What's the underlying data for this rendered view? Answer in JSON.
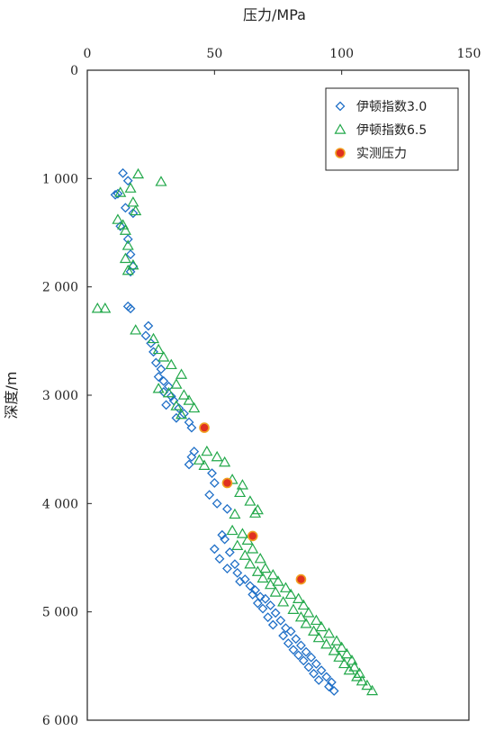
{
  "chart_data": {
    "type": "scatter",
    "title": "",
    "xlabel": "压力/MPa",
    "ylabel": "深度/m",
    "xlim": [
      0,
      150
    ],
    "ylim": [
      0,
      6000
    ],
    "y_inverted": true,
    "x_axis_position": "top",
    "x_ticks": [
      0,
      50,
      100,
      150
    ],
    "x_tick_labels": [
      "0",
      "50",
      "100",
      "150"
    ],
    "y_ticks": [
      0,
      1000,
      2000,
      3000,
      4000,
      5000,
      6000
    ],
    "y_tick_labels": [
      "0",
      "1 000",
      "2 000",
      "3 000",
      "4 000",
      "5 000",
      "6 000"
    ],
    "legend_position": "top-right",
    "grid": false,
    "series": [
      {
        "name": "伊顿指数3.0",
        "marker": "diamond",
        "color": "#1f6fc7",
        "points": [
          [
            14,
            950
          ],
          [
            16,
            1020
          ],
          [
            12,
            1140
          ],
          [
            11,
            1150
          ],
          [
            15,
            1270
          ],
          [
            18,
            1320
          ],
          [
            13,
            1440
          ],
          [
            16,
            1560
          ],
          [
            17,
            1700
          ],
          [
            18,
            1810
          ],
          [
            17,
            1860
          ],
          [
            16,
            2180
          ],
          [
            17,
            2200
          ],
          [
            24,
            2360
          ],
          [
            23,
            2450
          ],
          [
            25,
            2520
          ],
          [
            26,
            2600
          ],
          [
            27,
            2700
          ],
          [
            29,
            2760
          ],
          [
            28,
            2830
          ],
          [
            30,
            2870
          ],
          [
            32,
            2920
          ],
          [
            30,
            2970
          ],
          [
            33,
            3010
          ],
          [
            34,
            3050
          ],
          [
            31,
            3090
          ],
          [
            36,
            3120
          ],
          [
            38,
            3170
          ],
          [
            35,
            3210
          ],
          [
            40,
            3250
          ],
          [
            41,
            3300
          ],
          [
            42,
            3520
          ],
          [
            41,
            3570
          ],
          [
            40,
            3640
          ],
          [
            49,
            3720
          ],
          [
            50,
            3810
          ],
          [
            48,
            3920
          ],
          [
            51,
            4000
          ],
          [
            55,
            4050
          ],
          [
            53,
            4290
          ],
          [
            54,
            4330
          ],
          [
            50,
            4420
          ],
          [
            56,
            4450
          ],
          [
            52,
            4510
          ],
          [
            58,
            4560
          ],
          [
            55,
            4600
          ],
          [
            59,
            4640
          ],
          [
            62,
            4700
          ],
          [
            60,
            4720
          ],
          [
            64,
            4760
          ],
          [
            66,
            4800
          ],
          [
            65,
            4840
          ],
          [
            68,
            4860
          ],
          [
            70,
            4880
          ],
          [
            67,
            4920
          ],
          [
            72,
            4940
          ],
          [
            69,
            4970
          ],
          [
            74,
            5010
          ],
          [
            71,
            5050
          ],
          [
            76,
            5080
          ],
          [
            73,
            5120
          ],
          [
            78,
            5150
          ],
          [
            80,
            5180
          ],
          [
            77,
            5220
          ],
          [
            82,
            5250
          ],
          [
            79,
            5290
          ],
          [
            84,
            5310
          ],
          [
            81,
            5350
          ],
          [
            86,
            5370
          ],
          [
            83,
            5400
          ],
          [
            88,
            5420
          ],
          [
            85,
            5450
          ],
          [
            90,
            5480
          ],
          [
            87,
            5510
          ],
          [
            92,
            5540
          ],
          [
            89,
            5570
          ],
          [
            94,
            5600
          ],
          [
            91,
            5630
          ],
          [
            96,
            5650
          ],
          [
            95,
            5690
          ],
          [
            97,
            5730
          ]
        ]
      },
      {
        "name": "伊顿指数6.5",
        "marker": "triangle",
        "color": "#22a84a",
        "points": [
          [
            20,
            960
          ],
          [
            29,
            1030
          ],
          [
            17,
            1090
          ],
          [
            13,
            1130
          ],
          [
            18,
            1220
          ],
          [
            19,
            1300
          ],
          [
            12,
            1380
          ],
          [
            14,
            1430
          ],
          [
            15,
            1480
          ],
          [
            16,
            1620
          ],
          [
            15,
            1740
          ],
          [
            18,
            1800
          ],
          [
            16,
            1850
          ],
          [
            4,
            2200
          ],
          [
            7,
            2200
          ],
          [
            19,
            2400
          ],
          [
            26,
            2480
          ],
          [
            28,
            2580
          ],
          [
            30,
            2650
          ],
          [
            33,
            2720
          ],
          [
            37,
            2810
          ],
          [
            35,
            2900
          ],
          [
            28,
            2940
          ],
          [
            32,
            2980
          ],
          [
            38,
            3000
          ],
          [
            40,
            3050
          ],
          [
            35,
            3100
          ],
          [
            42,
            3120
          ],
          [
            37,
            3180
          ],
          [
            47,
            3520
          ],
          [
            51,
            3570
          ],
          [
            44,
            3600
          ],
          [
            54,
            3620
          ],
          [
            46,
            3650
          ],
          [
            57,
            3780
          ],
          [
            61,
            3830
          ],
          [
            60,
            3900
          ],
          [
            64,
            3980
          ],
          [
            67,
            4060
          ],
          [
            66,
            4090
          ],
          [
            58,
            4100
          ],
          [
            57,
            4250
          ],
          [
            61,
            4280
          ],
          [
            63,
            4340
          ],
          [
            59,
            4390
          ],
          [
            65,
            4420
          ],
          [
            62,
            4480
          ],
          [
            68,
            4510
          ],
          [
            64,
            4560
          ],
          [
            70,
            4600
          ],
          [
            67,
            4630
          ],
          [
            73,
            4660
          ],
          [
            69,
            4690
          ],
          [
            75,
            4720
          ],
          [
            72,
            4750
          ],
          [
            78,
            4780
          ],
          [
            74,
            4820
          ],
          [
            80,
            4840
          ],
          [
            83,
            4880
          ],
          [
            77,
            4910
          ],
          [
            85,
            4940
          ],
          [
            81,
            4980
          ],
          [
            87,
            5010
          ],
          [
            84,
            5050
          ],
          [
            90,
            5080
          ],
          [
            86,
            5110
          ],
          [
            92,
            5140
          ],
          [
            89,
            5180
          ],
          [
            95,
            5200
          ],
          [
            91,
            5240
          ],
          [
            98,
            5270
          ],
          [
            94,
            5300
          ],
          [
            100,
            5330
          ],
          [
            97,
            5360
          ],
          [
            102,
            5390
          ],
          [
            99,
            5420
          ],
          [
            104,
            5450
          ],
          [
            101,
            5480
          ],
          [
            105,
            5510
          ],
          [
            103,
            5540
          ],
          [
            107,
            5570
          ],
          [
            106,
            5600
          ],
          [
            108,
            5640
          ],
          [
            110,
            5680
          ],
          [
            112,
            5730
          ]
        ]
      },
      {
        "name": "实测压力",
        "marker": "circle",
        "color": "#e03020",
        "edge_color": "#f0a020",
        "points": [
          [
            46,
            3300
          ],
          [
            55,
            3810
          ],
          [
            65,
            4300
          ],
          [
            84,
            4700
          ]
        ]
      }
    ]
  }
}
